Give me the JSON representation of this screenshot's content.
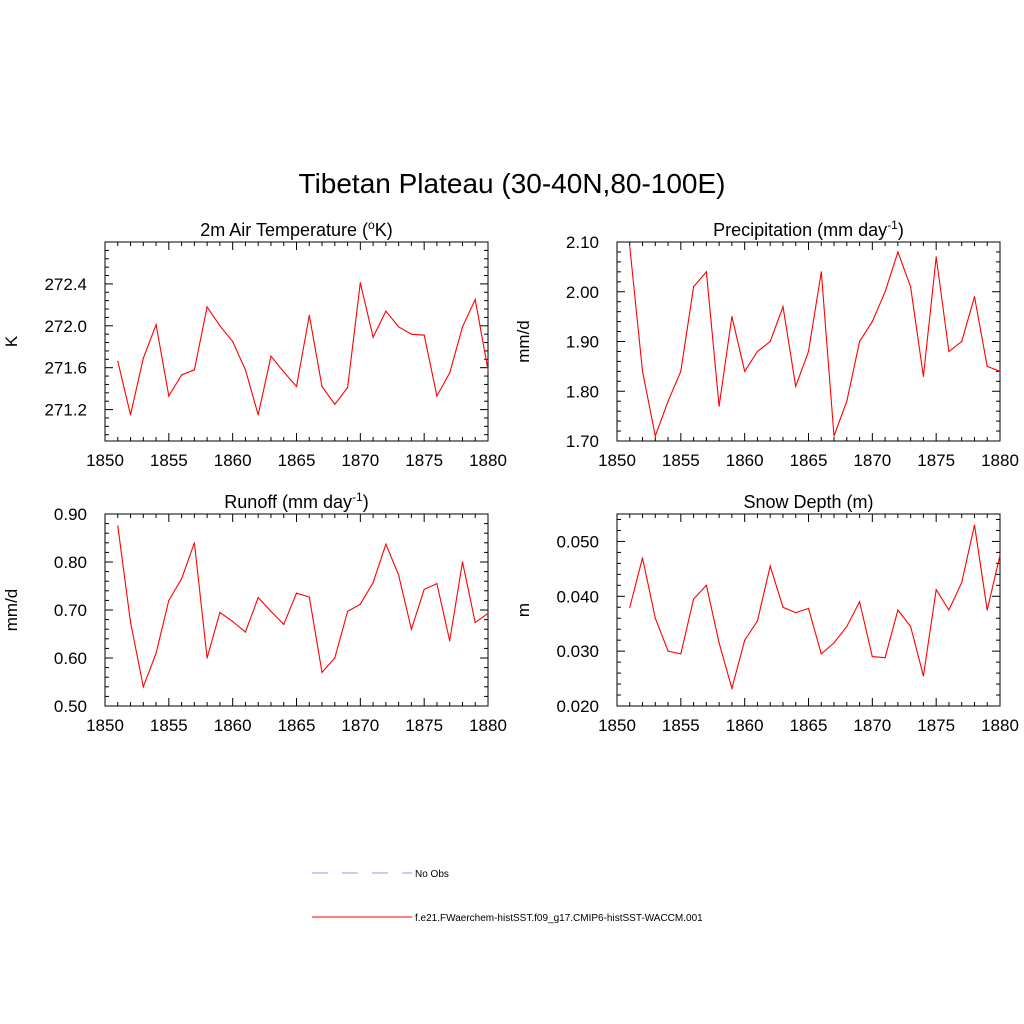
{
  "main_title": "Tibetan Plateau (30-40N,80-100E)",
  "legend": {
    "entries": [
      {
        "label": "No Obs",
        "color": "#9999dd",
        "style": "dashed"
      },
      {
        "label": "f.e21.FWaerchem-histSST.f09_g17.CMIP6-histSST-WACCM.001",
        "color": "#ff0000",
        "style": "solid"
      }
    ]
  },
  "chart_data": [
    {
      "type": "line",
      "title_parts": [
        "2m Air Temperature (",
        "o",
        "K)"
      ],
      "ylabel": "K",
      "xlim": [
        1850,
        1880
      ],
      "ylim": [
        270.9,
        272.8
      ],
      "xticks": [
        "1850",
        "1855",
        "1860",
        "1865",
        "1870",
        "1875",
        "1880"
      ],
      "yticks": [
        "271.2",
        "271.6",
        "272.0",
        "272.4"
      ],
      "color": "#ff0000",
      "x": [
        1851,
        1852,
        1853,
        1854,
        1855,
        1856,
        1857,
        1858,
        1859,
        1860,
        1861,
        1862,
        1863,
        1864,
        1865,
        1866,
        1867,
        1868,
        1869,
        1870,
        1871,
        1872,
        1873,
        1874,
        1875,
        1876,
        1877,
        1878,
        1879,
        1880
      ],
      "values": [
        271.66,
        271.15,
        271.69,
        272.01,
        271.33,
        271.53,
        271.58,
        272.18,
        272.0,
        271.85,
        271.58,
        271.15,
        271.71,
        271.56,
        271.42,
        272.1,
        271.42,
        271.25,
        271.41,
        272.41,
        271.89,
        272.14,
        271.99,
        271.92,
        271.91,
        271.33,
        271.55,
        271.99,
        272.25,
        271.58
      ]
    },
    {
      "type": "line",
      "title_parts": [
        "Precipitation (mm day",
        "-1",
        ")"
      ],
      "ylabel": "mm/d",
      "xlim": [
        1850,
        1880
      ],
      "ylim": [
        1.7,
        2.1
      ],
      "xticks": [
        "1850",
        "1855",
        "1860",
        "1865",
        "1870",
        "1875",
        "1880"
      ],
      "yticks": [
        "1.70",
        "1.80",
        "1.90",
        "2.00",
        "2.10"
      ],
      "color": "#ff0000",
      "x": [
        1851,
        1852,
        1853,
        1854,
        1855,
        1856,
        1857,
        1858,
        1859,
        1860,
        1861,
        1862,
        1863,
        1864,
        1865,
        1866,
        1867,
        1868,
        1869,
        1870,
        1871,
        1872,
        1873,
        1874,
        1875,
        1876,
        1877,
        1878,
        1879,
        1880
      ],
      "values": [
        2.09,
        1.84,
        1.71,
        1.78,
        1.84,
        2.01,
        2.04,
        1.77,
        1.95,
        1.84,
        1.88,
        1.9,
        1.97,
        1.81,
        1.88,
        2.04,
        1.71,
        1.78,
        1.9,
        1.94,
        2.0,
        2.08,
        2.01,
        1.83,
        2.07,
        1.88,
        1.9,
        1.99,
        1.85,
        1.84
      ]
    },
    {
      "type": "line",
      "title_parts": [
        "Runoff (mm day",
        "-1",
        ")"
      ],
      "ylabel": "mm/d",
      "xlim": [
        1850,
        1880
      ],
      "ylim": [
        0.5,
        0.9
      ],
      "xticks": [
        "1850",
        "1855",
        "1860",
        "1865",
        "1870",
        "1875",
        "1880"
      ],
      "yticks": [
        "0.50",
        "0.60",
        "0.70",
        "0.80",
        "0.90"
      ],
      "color": "#ff0000",
      "x": [
        1851,
        1852,
        1853,
        1854,
        1855,
        1856,
        1857,
        1858,
        1859,
        1860,
        1861,
        1862,
        1863,
        1864,
        1865,
        1866,
        1867,
        1868,
        1869,
        1870,
        1871,
        1872,
        1873,
        1874,
        1875,
        1876,
        1877,
        1878,
        1879,
        1880
      ],
      "values": [
        0.875,
        0.675,
        0.54,
        0.61,
        0.72,
        0.765,
        0.84,
        0.6,
        0.695,
        0.676,
        0.654,
        0.726,
        0.697,
        0.67,
        0.735,
        0.727,
        0.57,
        0.6,
        0.697,
        0.712,
        0.757,
        0.837,
        0.773,
        0.66,
        0.743,
        0.755,
        0.636,
        0.8,
        0.674,
        0.693
      ]
    },
    {
      "type": "line",
      "title_parts": [
        "Snow Depth (m)"
      ],
      "ylabel": "m",
      "xlim": [
        1850,
        1880
      ],
      "ylim": [
        0.02,
        0.055
      ],
      "xticks": [
        "1850",
        "1855",
        "1860",
        "1865",
        "1870",
        "1875",
        "1880"
      ],
      "yticks": [
        "0.020",
        "0.030",
        "0.040",
        "0.050"
      ],
      "color": "#ff0000",
      "x": [
        1851,
        1852,
        1853,
        1854,
        1855,
        1856,
        1857,
        1858,
        1859,
        1860,
        1861,
        1862,
        1863,
        1864,
        1865,
        1866,
        1867,
        1868,
        1869,
        1870,
        1871,
        1872,
        1873,
        1874,
        1875,
        1876,
        1877,
        1878,
        1879,
        1880
      ],
      "values": [
        0.038,
        0.047,
        0.036,
        0.03,
        0.0295,
        0.0395,
        0.042,
        0.0315,
        0.0232,
        0.032,
        0.0355,
        0.0455,
        0.038,
        0.037,
        0.0378,
        0.0295,
        0.0315,
        0.0345,
        0.039,
        0.029,
        0.0288,
        0.0375,
        0.0345,
        0.0255,
        0.0412,
        0.0375,
        0.0425,
        0.053,
        0.0375,
        0.0475
      ]
    }
  ]
}
